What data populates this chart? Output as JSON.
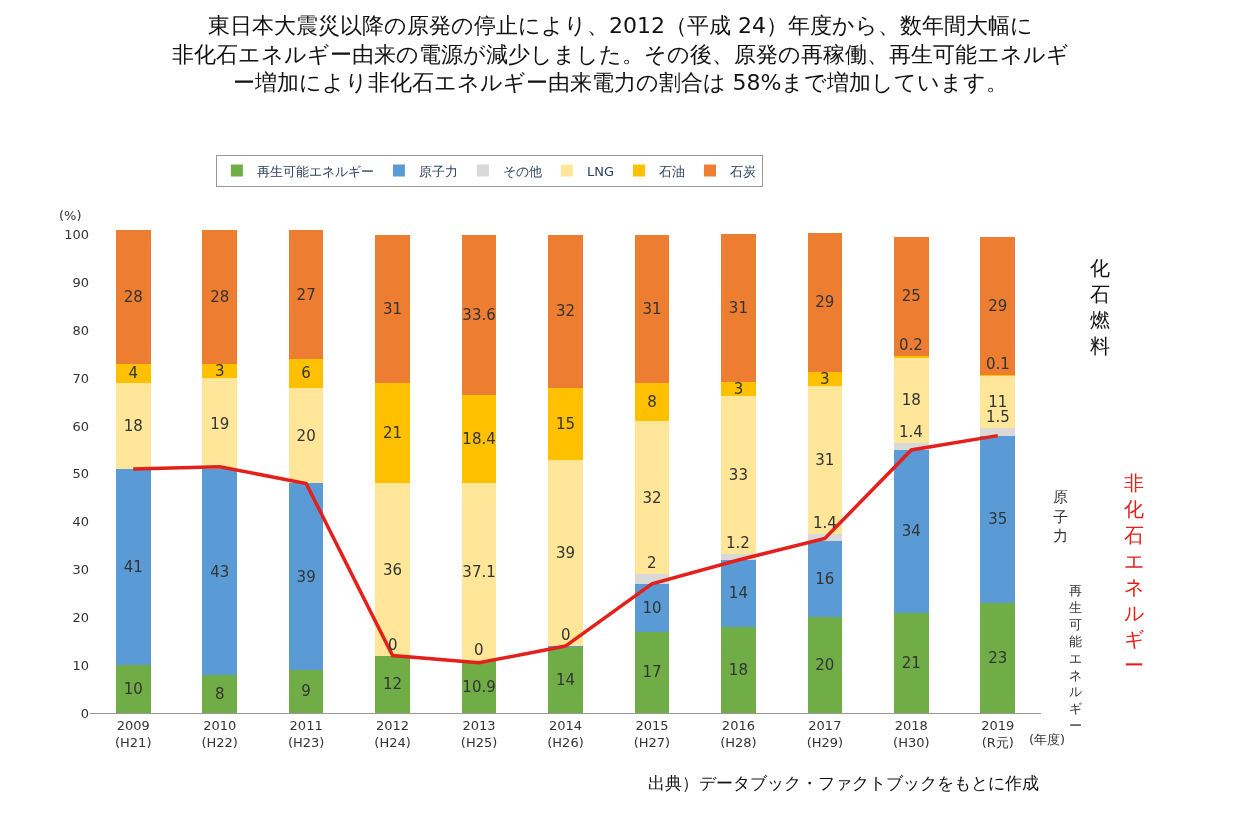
{
  "chart_data": {
    "type": "bar",
    "stacked": true,
    "title": "東日本大震災以降の原発の停止により、2012（平成 24）年度から、数年間大幅に非化石エネルギー由来の電源が減少しました。その後、原発の再稼働、再生可能エネルギー増加により非化石エネルギー由来電力の割合は 58%まで増加しています。",
    "ylabel": "(%)",
    "xlabel": "(年度)",
    "categories": [
      "2009\n(H21)",
      "2010\n(H22)",
      "2011\n(H23)",
      "2012\n(H24)",
      "2013\n(H25)",
      "2014\n(H26)",
      "2015\n(H27)",
      "2016\n(H28)",
      "2017\n(H29)",
      "2018\n(H30)",
      "2019\n(R元)"
    ],
    "series": [
      {
        "name": "再生可能エネルギー",
        "color": "#70ad47",
        "values": [
          10,
          8,
          9,
          12,
          10.9,
          14,
          17,
          18,
          20,
          21,
          23
        ],
        "value_labels": [
          "10",
          "8",
          "9",
          "12",
          "10.9",
          "14",
          "17",
          "18",
          "20",
          "21",
          "23"
        ]
      },
      {
        "name": "原子力",
        "color": "#5b9bd5",
        "values": [
          41,
          43,
          39,
          0,
          0,
          0,
          10,
          14,
          16,
          34,
          35
        ],
        "value_labels": [
          "41",
          "43",
          "39",
          "0",
          "0",
          "0",
          "10",
          "14",
          "16",
          "34",
          "35"
        ]
      },
      {
        "name": "その他",
        "color": "#d9d9d9",
        "values": [
          null,
          null,
          null,
          null,
          null,
          null,
          2,
          1.2,
          1.4,
          1.4,
          1.5
        ],
        "value_labels": [
          null,
          null,
          null,
          null,
          null,
          null,
          "2",
          "1.2",
          "1.4",
          "1.4",
          "1.5"
        ]
      },
      {
        "name": "LNG",
        "color": "#ffe699",
        "values": [
          18,
          19,
          20,
          36,
          37.1,
          39,
          32,
          33,
          31,
          18,
          11
        ],
        "value_labels": [
          "18",
          "19",
          "20",
          "36",
          "37.1",
          "39",
          "32",
          "33",
          "31",
          "18",
          "11"
        ]
      },
      {
        "name": "石油",
        "color": "#ffc000",
        "values": [
          4,
          3,
          6,
          21,
          18.4,
          15,
          8,
          3,
          3,
          0.2,
          0.1
        ],
        "value_labels": [
          "4",
          "3",
          "6",
          "21",
          "18.4",
          "15",
          "8",
          "3",
          "3",
          "0.2",
          "0.1"
        ]
      },
      {
        "name": "石炭",
        "color": "#ed7d31",
        "values": [
          28,
          28,
          27,
          31,
          33.6,
          32,
          31,
          31,
          29,
          25,
          29
        ],
        "value_labels": [
          "28",
          "28",
          "27",
          "31",
          "33.6",
          "32",
          "31",
          "31",
          "29",
          "25",
          "29"
        ]
      },
      {
        "type": "line",
        "color": "#e3201b",
        "values": [
          51,
          51.5,
          48,
          12,
          10.5,
          14,
          27,
          32,
          36.5,
          55,
          58
        ]
      }
    ],
    "ylim": [
      0,
      101
    ],
    "yticks": [
      0,
      10,
      20,
      30,
      40,
      50,
      60,
      70,
      80,
      90,
      100
    ],
    "legend": "top",
    "annotations": [
      "化石燃料",
      "原子力",
      "再生可能エネルギー",
      "非化石エネルギー",
      "出典）データブック・ファクトブックをもとに作成"
    ]
  }
}
